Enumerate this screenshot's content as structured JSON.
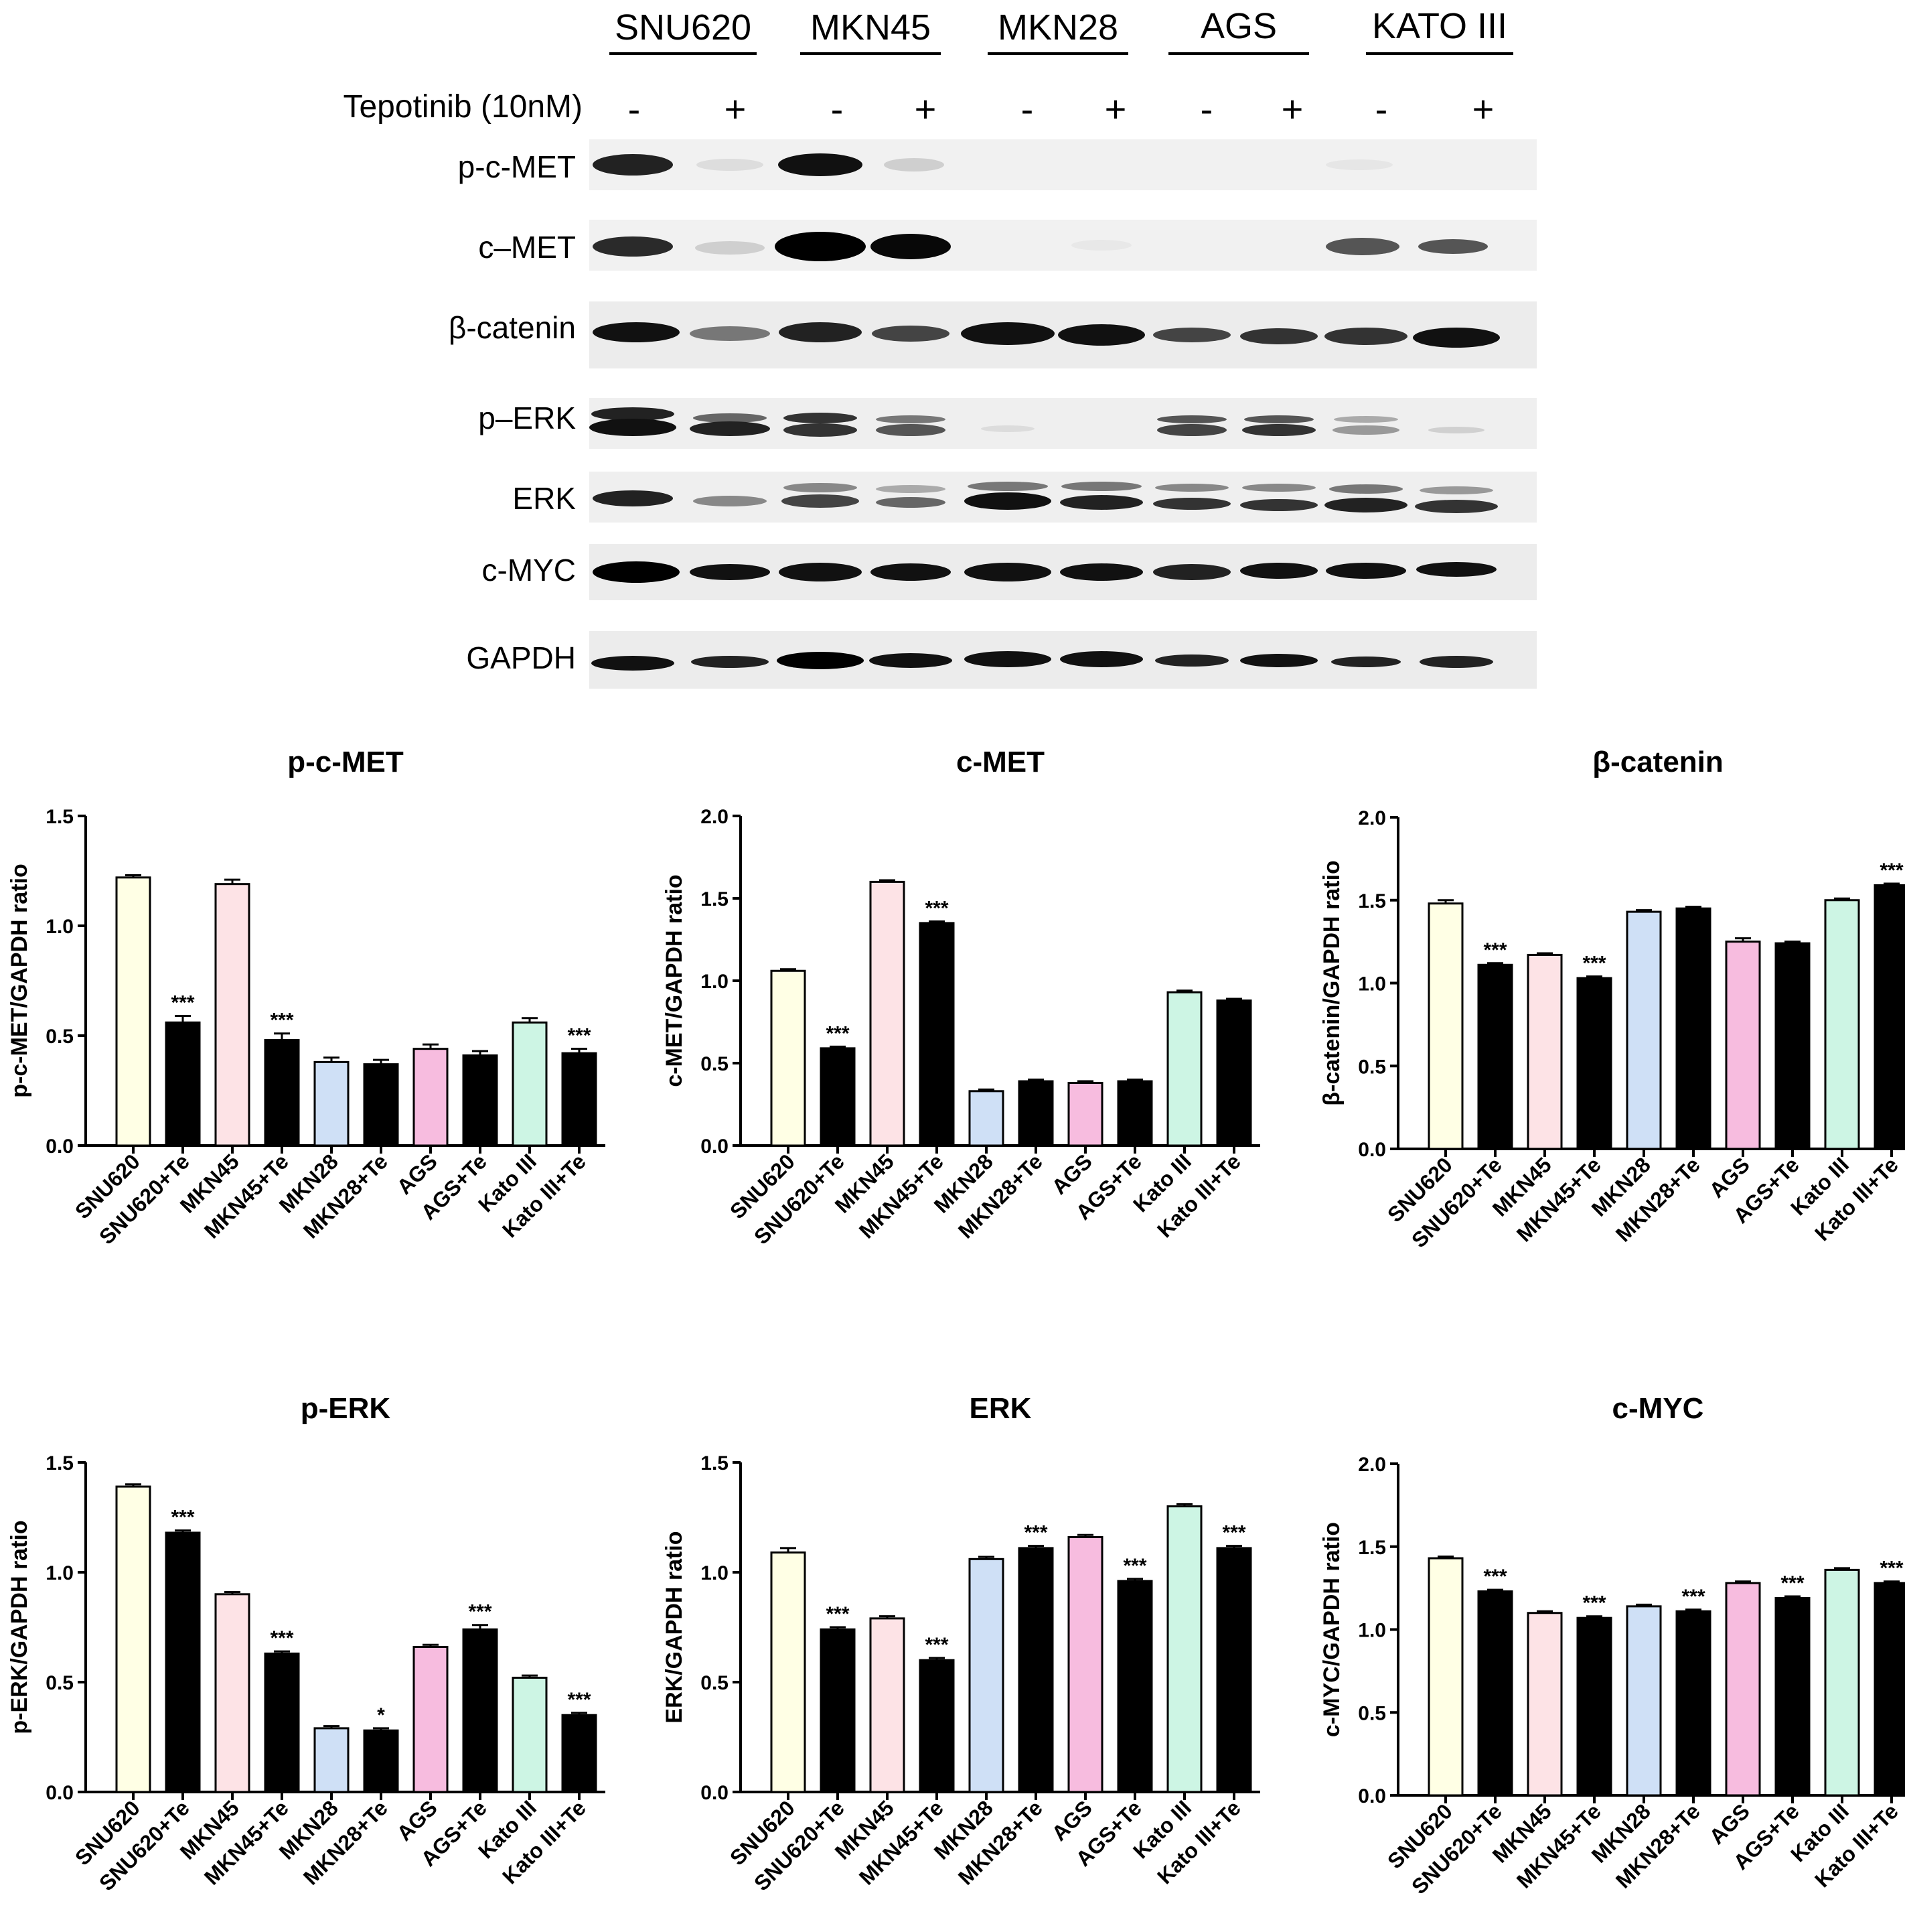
{
  "blot": {
    "cell_lines": [
      "SNU620",
      "MKN45",
      "MKN28",
      "AGS",
      "KATO III"
    ],
    "treatment_label": "Tepotinib (10nM)",
    "signs": [
      "-",
      "+",
      "-",
      "+",
      "-",
      "+",
      "-",
      "+",
      "-",
      "+"
    ],
    "proteins": [
      "p-c-MET",
      "c–MET",
      "β-catenin",
      "p–ERK",
      "ERK",
      "c-MYC",
      "GAPDH"
    ]
  },
  "chart_data": [
    {
      "type": "bar",
      "title": "p-c-MET",
      "ylabel": "p-c-MET/GAPDH ratio",
      "ylim": [
        0,
        1.5
      ],
      "yticks": [
        "0.0",
        "0.5",
        "1.0",
        "1.5"
      ],
      "categories": [
        "SNU620",
        "SNU620+Te",
        "MKN45",
        "MKN45+Te",
        "MKN28",
        "MKN28+Te",
        "AGS",
        "AGS+Te",
        "Kato III",
        "Kato III+Te"
      ],
      "values": [
        1.22,
        0.56,
        1.19,
        0.48,
        0.38,
        0.37,
        0.44,
        0.41,
        0.56,
        0.42
      ],
      "errors": [
        0.01,
        0.03,
        0.02,
        0.03,
        0.02,
        0.02,
        0.02,
        0.02,
        0.02,
        0.02
      ],
      "annotations": [
        "",
        "***",
        "",
        "***",
        "",
        "",
        "",
        "",
        "",
        "***"
      ]
    },
    {
      "type": "bar",
      "title": "c-MET",
      "ylabel": "c-MET/GAPDH ratio",
      "ylim": [
        0,
        2.0
      ],
      "yticks": [
        "0.0",
        "0.5",
        "1.0",
        "1.5",
        "2.0"
      ],
      "categories": [
        "SNU620",
        "SNU620+Te",
        "MKN45",
        "MKN45+Te",
        "MKN28",
        "MKN28+Te",
        "AGS",
        "AGS+Te",
        "Kato III",
        "Kato III+Te"
      ],
      "values": [
        1.06,
        0.59,
        1.6,
        1.35,
        0.33,
        0.39,
        0.38,
        0.39,
        0.93,
        0.88
      ],
      "errors": [
        0.01,
        0.01,
        0.01,
        0.01,
        0.01,
        0.01,
        0.01,
        0.01,
        0.01,
        0.01
      ],
      "annotations": [
        "",
        "***",
        "",
        "***",
        "",
        "",
        "",
        "",
        "",
        ""
      ]
    },
    {
      "type": "bar",
      "title": "β-catenin",
      "ylabel": "β-catenin/GAPDH ratio",
      "ylim": [
        0,
        2.0
      ],
      "yticks": [
        "0.0",
        "0.5",
        "1.0",
        "1.5",
        "2.0"
      ],
      "categories": [
        "SNU620",
        "SNU620+Te",
        "MKN45",
        "MKN45+Te",
        "MKN28",
        "MKN28+Te",
        "AGS",
        "AGS+Te",
        "Kato III",
        "Kato III+Te"
      ],
      "values": [
        1.48,
        1.11,
        1.17,
        1.03,
        1.43,
        1.45,
        1.25,
        1.24,
        1.5,
        1.59
      ],
      "errors": [
        0.02,
        0.01,
        0.01,
        0.01,
        0.01,
        0.01,
        0.02,
        0.01,
        0.01,
        0.01
      ],
      "annotations": [
        "",
        "***",
        "",
        "***",
        "",
        "",
        "",
        "",
        "",
        "***"
      ]
    },
    {
      "type": "bar",
      "title": "p-ERK",
      "ylabel": "p-ERK/GAPDH ratio",
      "ylim": [
        0,
        1.5
      ],
      "yticks": [
        "0.0",
        "0.5",
        "1.0",
        "1.5"
      ],
      "categories": [
        "SNU620",
        "SNU620+Te",
        "MKN45",
        "MKN45+Te",
        "MKN28",
        "MKN28+Te",
        "AGS",
        "AGS+Te",
        "Kato III",
        "Kato III+Te"
      ],
      "values": [
        1.39,
        1.18,
        0.9,
        0.63,
        0.29,
        0.28,
        0.66,
        0.74,
        0.52,
        0.35
      ],
      "errors": [
        0.01,
        0.01,
        0.01,
        0.01,
        0.01,
        0.01,
        0.01,
        0.02,
        0.01,
        0.01
      ],
      "annotations": [
        "",
        "***",
        "",
        "***",
        "",
        "*",
        "",
        "***",
        "",
        "***"
      ]
    },
    {
      "type": "bar",
      "title": "ERK",
      "ylabel": "ERK/GAPDH ratio",
      "ylim": [
        0,
        1.5
      ],
      "yticks": [
        "0.0",
        "0.5",
        "1.0",
        "1.5"
      ],
      "categories": [
        "SNU620",
        "SNU620+Te",
        "MKN45",
        "MKN45+Te",
        "MKN28",
        "MKN28+Te",
        "AGS",
        "AGS+Te",
        "Kato III",
        "Kato III+Te"
      ],
      "values": [
        1.09,
        0.74,
        0.79,
        0.6,
        1.06,
        1.11,
        1.16,
        0.96,
        1.3,
        1.11
      ],
      "errors": [
        0.02,
        0.01,
        0.01,
        0.01,
        0.01,
        0.01,
        0.01,
        0.01,
        0.01,
        0.01
      ],
      "annotations": [
        "",
        "***",
        "",
        "***",
        "",
        "***",
        "",
        "***",
        "",
        "***"
      ]
    },
    {
      "type": "bar",
      "title": "c-MYC",
      "ylabel": "c-MYC/GAPDH ratio",
      "ylim": [
        0,
        2.0
      ],
      "yticks": [
        "0.0",
        "0.5",
        "1.0",
        "1.5",
        "2.0"
      ],
      "categories": [
        "SNU620",
        "SNU620+Te",
        "MKN45",
        "MKN45+Te",
        "MKN28",
        "MKN28+Te",
        "AGS",
        "AGS+Te",
        "Kato III",
        "Kato III+Te"
      ],
      "values": [
        1.43,
        1.23,
        1.1,
        1.07,
        1.14,
        1.11,
        1.28,
        1.19,
        1.36,
        1.28
      ],
      "errors": [
        0.01,
        0.01,
        0.01,
        0.01,
        0.01,
        0.01,
        0.01,
        0.01,
        0.01,
        0.01
      ],
      "annotations": [
        "",
        "***",
        "",
        "***",
        "",
        "***",
        "",
        "***",
        "",
        "***"
      ]
    }
  ],
  "colors": {
    "SNU620": "#ffffe5",
    "MKN45": "#fde3e6",
    "MKN28": "#cfe0f6",
    "AGS": "#f7bcdf",
    "Kato III": "#cdf5e4",
    "treated": "#000000"
  }
}
